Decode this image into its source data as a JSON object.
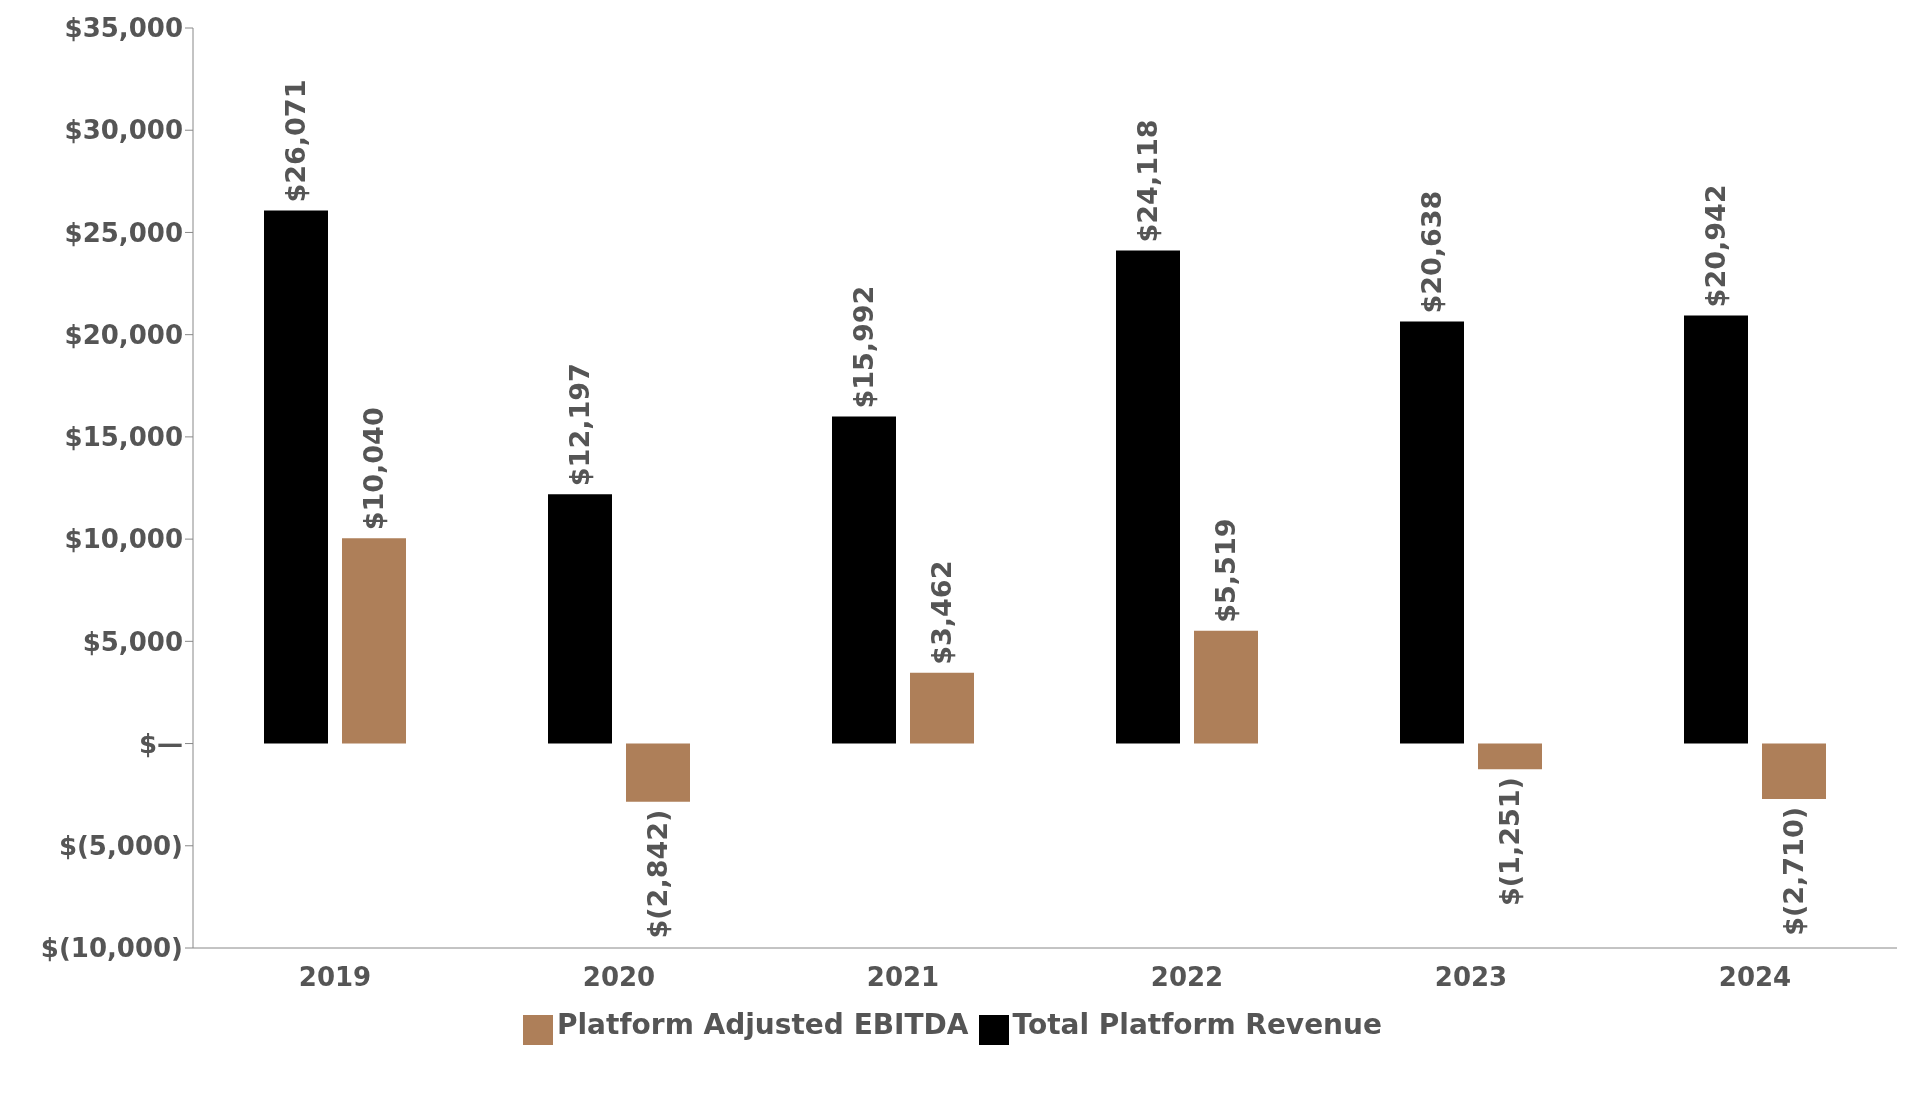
{
  "chart_data": {
    "type": "bar",
    "categories": [
      "2019",
      "2020",
      "2021",
      "2022",
      "2023",
      "2024"
    ],
    "series": [
      {
        "name": "Total Platform Revenue",
        "color": "#000000",
        "values": [
          26071,
          12197,
          15992,
          24118,
          20638,
          20942
        ],
        "value_labels": [
          "$26,071",
          "$12,197",
          "$15,992",
          "$24,118",
          "$20,638",
          "$20,942"
        ]
      },
      {
        "name": "Platform Adjusted EBITDA",
        "color": "#ae7f59",
        "values": [
          10040,
          -2842,
          3462,
          5519,
          -1251,
          -2710
        ],
        "value_labels": [
          "$10,040",
          "$(2,842)",
          "$3,462",
          "$5,519",
          "$(1,251)",
          "$(2,710)"
        ]
      }
    ],
    "ylim": [
      -10000,
      35000
    ],
    "yticks": [
      {
        "value": -10000,
        "label": "$(10,000)"
      },
      {
        "value": -5000,
        "label": "$(5,000)"
      },
      {
        "value": 0,
        "label": "$—"
      },
      {
        "value": 5000,
        "label": "$5,000"
      },
      {
        "value": 10000,
        "label": "$10,000"
      },
      {
        "value": 15000,
        "label": "$15,000"
      },
      {
        "value": 20000,
        "label": "$20,000"
      },
      {
        "value": 25000,
        "label": "$25,000"
      },
      {
        "value": 30000,
        "label": "$30,000"
      },
      {
        "value": 35000,
        "label": "$35,000"
      }
    ],
    "grid": false,
    "legend": "bottom"
  }
}
